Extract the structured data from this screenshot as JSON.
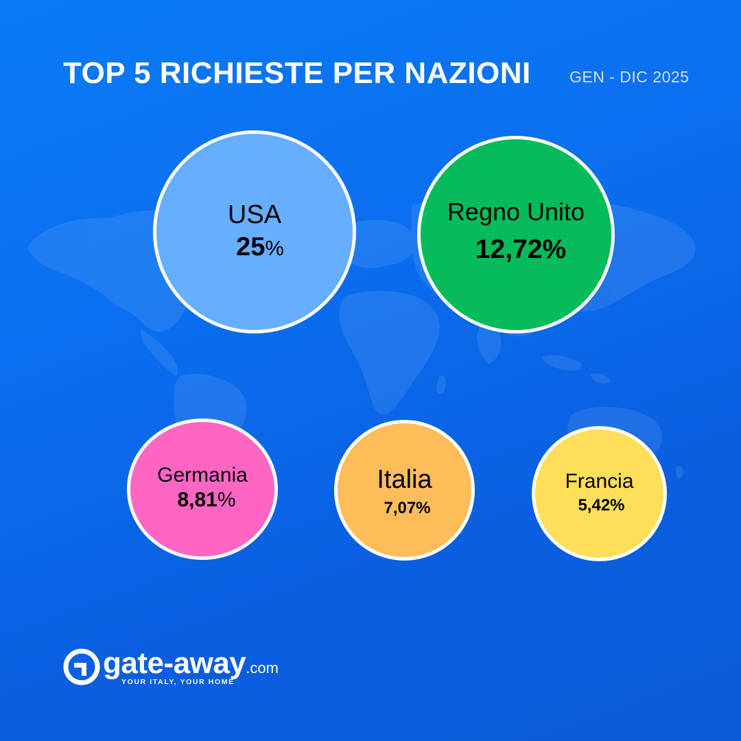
{
  "header": {
    "title": "TOP 5 RICHIESTE PER NAZIONI",
    "period": "GEN - DIC 2025"
  },
  "chart_data": {
    "type": "bubble",
    "title": "TOP 5 RICHIESTE PER NAZIONI",
    "subtitle": "GEN - DIC 2025",
    "categories": [
      "USA",
      "Regno Unito",
      "Germania",
      "Italia",
      "Francia"
    ],
    "values": [
      25,
      12.72,
      8.81,
      7.07,
      5.42
    ],
    "unit": "%",
    "labels": [
      {
        "name": "USA",
        "value": "25",
        "unit": "%"
      },
      {
        "name": "Regno Unito",
        "value": "12,72%",
        "unit": ""
      },
      {
        "name": "Germania",
        "value": "8,81",
        "unit": "%"
      },
      {
        "name": "Italia",
        "value": "7,07%",
        "unit": ""
      },
      {
        "name": "Francia",
        "value": "5,42%",
        "unit": ""
      }
    ],
    "colors": [
      "#66aeff",
      "#05bb5c",
      "#ff66c4",
      "#ffbd59",
      "#ffde59"
    ]
  },
  "theme": {
    "background": "#0a6ff0",
    "bubble_border": "#ffffff",
    "map_color": "#ffffff"
  },
  "brand": {
    "name": "gate-away",
    "tld": ".com",
    "tagline": "YOUR ITALY, YOUR HOME",
    "icon": "gate-away-logo-icon"
  }
}
